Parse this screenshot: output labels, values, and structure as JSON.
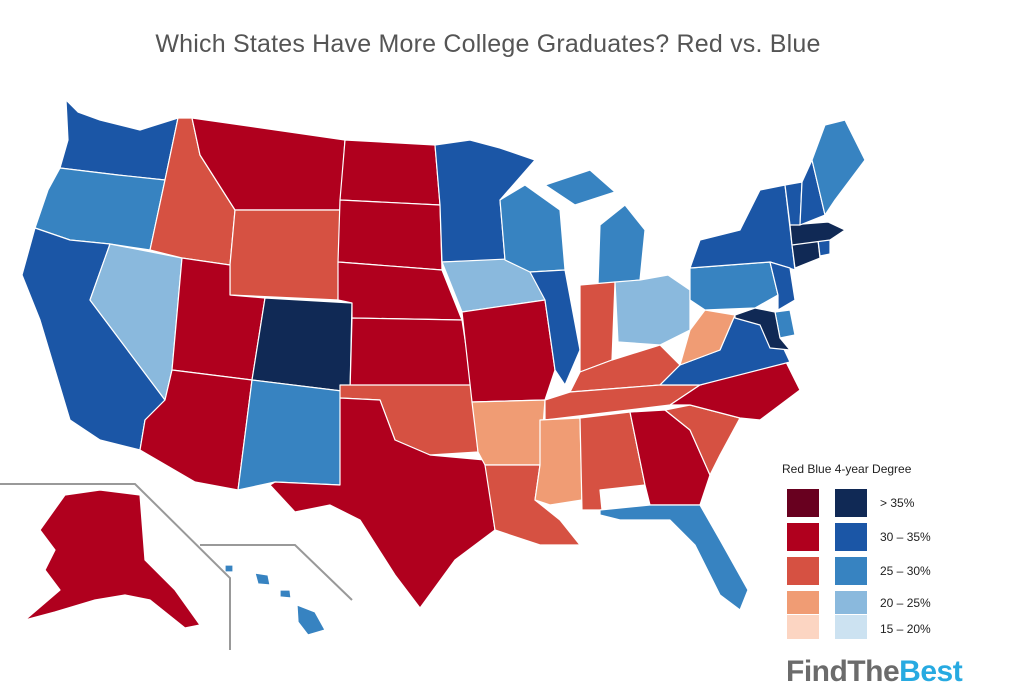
{
  "title": "Which States Have More College Graduates? Red vs. Blue",
  "colors": {
    "red_very_high": "#68001f",
    "red_high": "#b0001e",
    "red_mid": "#d65142",
    "red_low": "#f09c74",
    "red_very_low": "#fcd5c2",
    "blue_very_high": "#102955",
    "blue_high": "#1b56a6",
    "blue_mid": "#3783c1",
    "blue_low": "#8ab9dd",
    "blue_very_low": "#cce2f1"
  },
  "legend": {
    "header": "Red  Blue  4-year Degree",
    "ranges": [
      "> 35%",
      "30 – 35%",
      "25 – 30%",
      "20 – 25%",
      "15 – 20%"
    ]
  },
  "states": [
    {
      "abbr": "WA",
      "category": "blue_high"
    },
    {
      "abbr": "OR",
      "category": "blue_mid"
    },
    {
      "abbr": "CA",
      "category": "blue_high"
    },
    {
      "abbr": "NV",
      "category": "blue_low"
    },
    {
      "abbr": "ID",
      "category": "red_mid"
    },
    {
      "abbr": "MT",
      "category": "red_high"
    },
    {
      "abbr": "WY",
      "category": "red_mid"
    },
    {
      "abbr": "UT",
      "category": "red_high"
    },
    {
      "abbr": "AZ",
      "category": "red_high"
    },
    {
      "abbr": "CO",
      "category": "blue_very_high"
    },
    {
      "abbr": "NM",
      "category": "blue_mid"
    },
    {
      "abbr": "ND",
      "category": "red_high"
    },
    {
      "abbr": "SD",
      "category": "red_high"
    },
    {
      "abbr": "NE",
      "category": "red_high"
    },
    {
      "abbr": "KS",
      "category": "red_high"
    },
    {
      "abbr": "OK",
      "category": "red_mid"
    },
    {
      "abbr": "TX",
      "category": "red_high"
    },
    {
      "abbr": "MN",
      "category": "blue_high"
    },
    {
      "abbr": "IA",
      "category": "blue_low"
    },
    {
      "abbr": "MO",
      "category": "red_high"
    },
    {
      "abbr": "AR",
      "category": "red_low"
    },
    {
      "abbr": "LA",
      "category": "red_mid"
    },
    {
      "abbr": "WI",
      "category": "blue_mid"
    },
    {
      "abbr": "IL",
      "category": "blue_high"
    },
    {
      "abbr": "MI",
      "category": "blue_mid"
    },
    {
      "abbr": "IN",
      "category": "red_mid"
    },
    {
      "abbr": "OH",
      "category": "blue_low"
    },
    {
      "abbr": "KY",
      "category": "red_mid"
    },
    {
      "abbr": "TN",
      "category": "red_mid"
    },
    {
      "abbr": "MS",
      "category": "red_low"
    },
    {
      "abbr": "AL",
      "category": "red_mid"
    },
    {
      "abbr": "GA",
      "category": "red_high"
    },
    {
      "abbr": "FL",
      "category": "blue_mid"
    },
    {
      "abbr": "SC",
      "category": "red_mid"
    },
    {
      "abbr": "NC",
      "category": "red_high"
    },
    {
      "abbr": "VA",
      "category": "blue_high"
    },
    {
      "abbr": "WV",
      "category": "red_low"
    },
    {
      "abbr": "PA",
      "category": "blue_mid"
    },
    {
      "abbr": "NY",
      "category": "blue_high"
    },
    {
      "abbr": "NJ",
      "category": "blue_high"
    },
    {
      "abbr": "DE",
      "category": "blue_mid"
    },
    {
      "abbr": "MD",
      "category": "blue_very_high"
    },
    {
      "abbr": "CT",
      "category": "blue_very_high"
    },
    {
      "abbr": "RI",
      "category": "blue_high"
    },
    {
      "abbr": "MA",
      "category": "blue_very_high"
    },
    {
      "abbr": "VT",
      "category": "blue_high"
    },
    {
      "abbr": "NH",
      "category": "blue_high"
    },
    {
      "abbr": "ME",
      "category": "blue_mid"
    },
    {
      "abbr": "AK",
      "category": "red_high"
    },
    {
      "abbr": "HI",
      "category": "blue_mid"
    }
  ],
  "brand": {
    "part1": "FindThe",
    "part2": "Best"
  }
}
